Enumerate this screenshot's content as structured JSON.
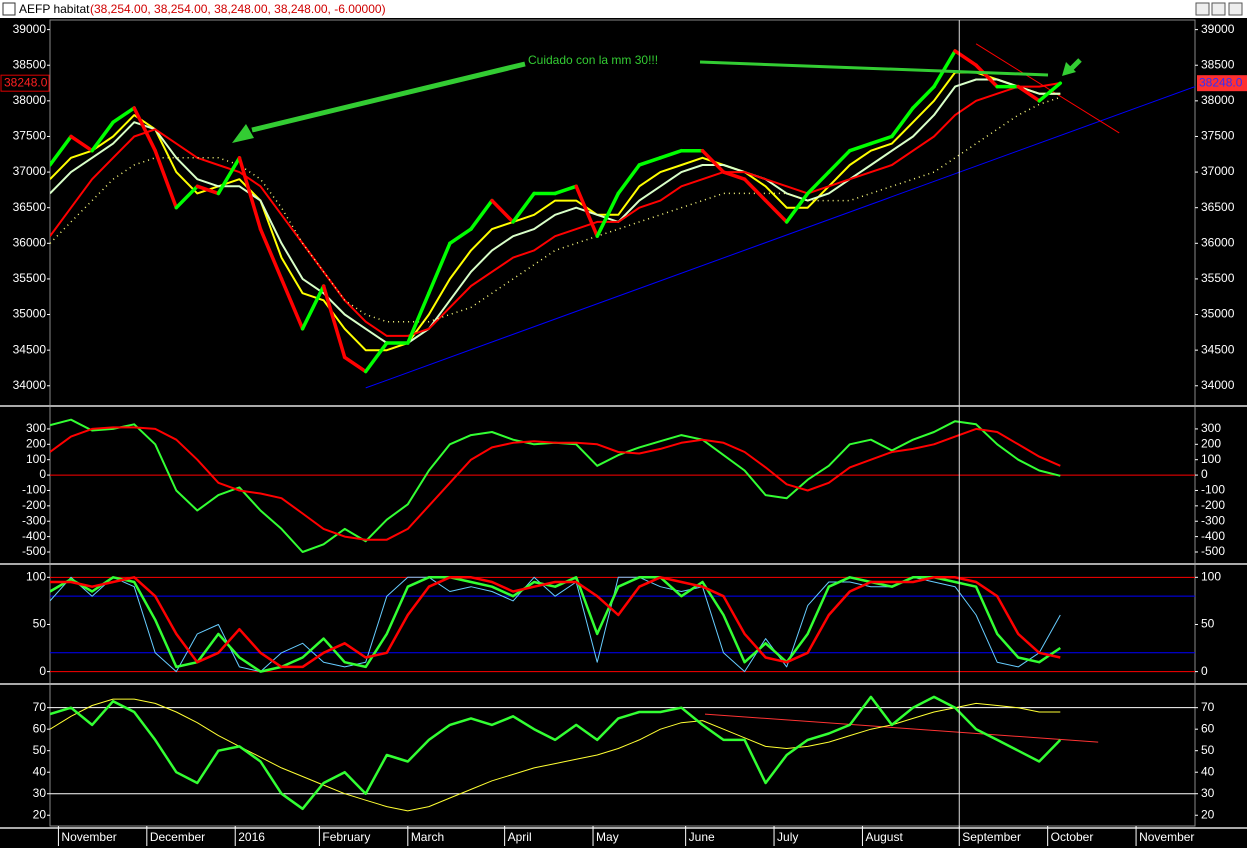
{
  "window": {
    "title": "AEFP habitat",
    "ohlc": "(38,254.00, 38,254.00, 38,248.00, 38,248.00, -6.00000)"
  },
  "chart_data": [
    {
      "type": "line",
      "x": [
        0,
        5,
        10,
        15,
        20,
        25,
        30,
        35,
        40,
        45,
        50,
        55,
        60,
        65,
        70,
        75,
        80,
        85,
        90,
        95,
        100,
        105,
        110,
        115,
        120,
        125,
        130,
        135,
        140,
        145,
        150,
        155,
        160,
        165,
        170,
        175,
        180,
        185,
        190,
        195,
        200,
        205,
        210,
        215,
        220,
        225,
        230,
        235,
        240
      ],
      "xlim": [
        0,
        272
      ],
      "xticks": [
        {
          "value": 2,
          "label": "November"
        },
        {
          "value": 23,
          "label": "December"
        },
        {
          "value": 44,
          "label": "2016"
        },
        {
          "value": 64,
          "label": "February"
        },
        {
          "value": 85,
          "label": "March"
        },
        {
          "value": 108,
          "label": "April"
        },
        {
          "value": 129,
          "label": "May"
        },
        {
          "value": 151,
          "label": "June"
        },
        {
          "value": 172,
          "label": "July"
        },
        {
          "value": 193,
          "label": "August"
        },
        {
          "value": 216,
          "label": "September"
        },
        {
          "value": 237,
          "label": "October"
        },
        {
          "value": 258,
          "label": "November"
        }
      ],
      "ylim": [
        33744,
        39135
      ],
      "yticks": [
        34000,
        34500,
        35000,
        35500,
        36000,
        36500,
        37000,
        37500,
        38000,
        38500,
        39000
      ],
      "price": {
        "up_color": "#00ff00",
        "down_color": "#ff0000",
        "values": [
          37100,
          37500,
          37300,
          37700,
          37900,
          37300,
          36500,
          36800,
          36700,
          37200,
          36200,
          35500,
          34800,
          35400,
          34400,
          34200,
          34600,
          34600,
          35300,
          36000,
          36200,
          36600,
          36300,
          36700,
          36700,
          36800,
          36100,
          36700,
          37100,
          37200,
          37300,
          37300,
          37000,
          36900,
          36600,
          36300,
          36700,
          37000,
          37300,
          37400,
          37500,
          37900,
          38200,
          38700,
          38500,
          38200,
          38200,
          38000,
          38248
        ]
      },
      "series": [
        {
          "color": "#ffff00",
          "style": "solid",
          "values": [
            36900,
            37200,
            37300,
            37500,
            37800,
            37600,
            37000,
            36700,
            36800,
            36900,
            36600,
            35800,
            35300,
            35200,
            34800,
            34500,
            34500,
            34600,
            35000,
            35500,
            35900,
            36200,
            36300,
            36400,
            36600,
            36600,
            36400,
            36400,
            36800,
            37000,
            37100,
            37200,
            37100,
            37000,
            36800,
            36500,
            36500,
            36800,
            37100,
            37300,
            37400,
            37700,
            38000,
            38400,
            38400,
            38300,
            38200,
            38100,
            38100
          ]
        },
        {
          "color": "#d8ffc8",
          "style": "solid",
          "values": [
            36700,
            37000,
            37200,
            37400,
            37700,
            37600,
            37200,
            36900,
            36800,
            36800,
            36600,
            36000,
            35500,
            35300,
            35000,
            34800,
            34600,
            34600,
            34800,
            35200,
            35600,
            35900,
            36100,
            36200,
            36400,
            36500,
            36400,
            36300,
            36600,
            36800,
            37000,
            37100,
            37100,
            37000,
            36900,
            36700,
            36600,
            36700,
            36900,
            37100,
            37300,
            37500,
            37800,
            38200,
            38300,
            38300,
            38200,
            38100,
            38100
          ]
        },
        {
          "color": "#ff0000",
          "style": "solid",
          "values": [
            36100,
            36500,
            36900,
            37200,
            37500,
            37600,
            37400,
            37200,
            37100,
            37000,
            36800,
            36400,
            36000,
            35600,
            35200,
            34900,
            34700,
            34700,
            34800,
            35100,
            35400,
            35600,
            35800,
            35900,
            36100,
            36200,
            36300,
            36300,
            36500,
            36600,
            36800,
            36900,
            37000,
            37000,
            36900,
            36800,
            36700,
            36800,
            36900,
            37000,
            37100,
            37300,
            37500,
            37800,
            38000,
            38100,
            38200,
            38200,
            38250
          ]
        },
        {
          "color": "#ffff80",
          "style": "dotted",
          "values": [
            36000,
            36300,
            36600,
            36900,
            37100,
            37200,
            37200,
            37200,
            37200,
            37100,
            36900,
            36500,
            36000,
            35600,
            35200,
            35000,
            34900,
            34900,
            34900,
            35000,
            35100,
            35300,
            35500,
            35700,
            35900,
            36000,
            36100,
            36200,
            36300,
            36400,
            36500,
            36600,
            36700,
            36700,
            36700,
            36700,
            36600,
            36600,
            36600,
            36700,
            36800,
            36900,
            37000,
            37200,
            37400,
            37600,
            37800,
            37950,
            38050
          ]
        }
      ],
      "trendlines": [
        {
          "color": "#0000ff",
          "x": [
            75,
            272
          ],
          "values": [
            33970,
            38200
          ]
        },
        {
          "color": "#ff0000",
          "x": [
            220,
            254
          ],
          "values": [
            38800,
            37550
          ]
        }
      ],
      "annotation": "Cuidado con la mm 30!!!",
      "last_value": 38248,
      "last_label": "38248.0",
      "cursor_x": 216
    },
    {
      "type": "line",
      "ylim": [
        -565,
        436
      ],
      "yticks": [
        -500,
        -400,
        -300,
        -200,
        -100,
        0,
        100,
        200,
        300
      ],
      "hlines": [
        {
          "value": 0,
          "color": "#ff0000"
        }
      ],
      "series": [
        {
          "color": "#33ff33",
          "values": [
            325,
            360,
            290,
            300,
            330,
            200,
            -100,
            -230,
            -130,
            -80,
            -230,
            -350,
            -500,
            -450,
            -350,
            -430,
            -290,
            -190,
            30,
            200,
            260,
            280,
            230,
            200,
            210,
            200,
            60,
            130,
            180,
            220,
            260,
            230,
            130,
            30,
            -130,
            -150,
            -30,
            60,
            200,
            230,
            160,
            230,
            280,
            350,
            330,
            200,
            100,
            30,
            -5
          ]
        },
        {
          "color": "#ff0000",
          "values": [
            150,
            250,
            300,
            310,
            310,
            300,
            230,
            100,
            -50,
            -100,
            -120,
            -150,
            -250,
            -350,
            -400,
            -420,
            -420,
            -350,
            -200,
            -50,
            100,
            180,
            210,
            220,
            210,
            210,
            200,
            150,
            140,
            170,
            210,
            230,
            210,
            150,
            50,
            -60,
            -100,
            -50,
            50,
            100,
            150,
            170,
            200,
            250,
            300,
            280,
            200,
            120,
            60
          ]
        }
      ]
    },
    {
      "type": "line",
      "ylim": [
        -11,
        112
      ],
      "yticks": [
        0,
        50,
        100
      ],
      "hlines": [
        {
          "value": 100,
          "color": "#ff0000"
        },
        {
          "value": 80,
          "color": "#0000ff"
        },
        {
          "value": 20,
          "color": "#0000ff"
        },
        {
          "value": 0,
          "color": "#ff0000"
        }
      ],
      "series": [
        {
          "color": "#66ccff",
          "width": 1,
          "values": [
            75,
            100,
            80,
            100,
            90,
            20,
            0,
            40,
            50,
            5,
            0,
            20,
            30,
            10,
            5,
            10,
            80,
            100,
            100,
            85,
            90,
            85,
            75,
            100,
            80,
            95,
            10,
            100,
            100,
            90,
            85,
            90,
            20,
            0,
            35,
            5,
            70,
            95,
            95,
            90,
            90,
            100,
            95,
            90,
            60,
            10,
            5,
            20,
            60
          ]
        },
        {
          "color": "#33ff33",
          "width": 2.5,
          "values": [
            85,
            98,
            85,
            100,
            95,
            55,
            5,
            10,
            40,
            15,
            0,
            5,
            15,
            35,
            10,
            5,
            40,
            90,
            100,
            100,
            95,
            90,
            80,
            95,
            90,
            100,
            40,
            90,
            100,
            100,
            80,
            95,
            60,
            10,
            30,
            10,
            40,
            90,
            100,
            95,
            90,
            100,
            100,
            95,
            90,
            40,
            15,
            10,
            25
          ]
        },
        {
          "color": "#ff0000",
          "width": 2.5,
          "values": [
            95,
            95,
            90,
            95,
            100,
            80,
            40,
            10,
            20,
            45,
            20,
            5,
            5,
            20,
            30,
            15,
            20,
            60,
            90,
            100,
            100,
            95,
            85,
            90,
            95,
            95,
            80,
            60,
            90,
            100,
            95,
            90,
            80,
            40,
            15,
            10,
            20,
            60,
            85,
            95,
            95,
            95,
            100,
            100,
            95,
            80,
            40,
            20,
            15
          ]
        }
      ]
    },
    {
      "type": "line",
      "ylim": [
        15,
        81
      ],
      "yticks": [
        20,
        30,
        40,
        50,
        60,
        70
      ],
      "hlines": [
        {
          "value": 70,
          "color": "#ffffff"
        },
        {
          "value": 30,
          "color": "#ffffff"
        }
      ],
      "series": [
        {
          "color": "#ffff33",
          "width": 1,
          "values": [
            60,
            66,
            71,
            74,
            74,
            72,
            68,
            63,
            57,
            52,
            47,
            42,
            38,
            34,
            30,
            27,
            24,
            22,
            24,
            28,
            32,
            36,
            39,
            42,
            44,
            46,
            48,
            51,
            55,
            60,
            63,
            64,
            60,
            56,
            52,
            51,
            52,
            54,
            57,
            60,
            62,
            65,
            68,
            70,
            72,
            71,
            70,
            68,
            68
          ]
        },
        {
          "color": "#33ff33",
          "width": 2.5,
          "values": [
            67,
            70,
            62,
            73,
            68,
            55,
            40,
            35,
            50,
            52,
            45,
            30,
            23,
            35,
            40,
            30,
            48,
            45,
            55,
            62,
            65,
            62,
            66,
            60,
            55,
            62,
            55,
            65,
            68,
            68,
            70,
            62,
            55,
            55,
            35,
            48,
            55,
            58,
            62,
            75,
            62,
            70,
            75,
            70,
            60,
            55,
            50,
            45,
            55
          ]
        }
      ],
      "trendlines": [
        {
          "color": "#ff3333",
          "x": [
            155.6,
            249
          ],
          "values": [
            67,
            54
          ]
        }
      ]
    }
  ]
}
